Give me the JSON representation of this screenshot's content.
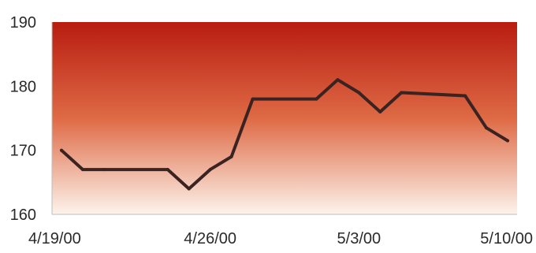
{
  "chart_data": {
    "type": "line",
    "title": "",
    "xlabel": "",
    "ylabel": "",
    "ylim": [
      160,
      190
    ],
    "yticks": [
      160,
      170,
      180,
      190
    ],
    "xticks": [
      {
        "date": "2000-04-19",
        "label": "4/19/00"
      },
      {
        "date": "2000-04-26",
        "label": "4/26/00"
      },
      {
        "date": "2000-05-03",
        "label": "5/3/00"
      },
      {
        "date": "2000-05-10",
        "label": "5/10/00"
      }
    ],
    "xlim": [
      "2000-04-19",
      "2000-05-10"
    ],
    "grid": false,
    "legend": "none",
    "colors": {
      "line": "#3a2320",
      "background_top": "#b81c10",
      "background_mid": "#de6a45",
      "background_bottom": "#fdf3ec",
      "axis": "#bdbdbd",
      "text": "#2a2a2a"
    },
    "series": [
      {
        "x": [
          "2000-04-19",
          "2000-04-20",
          "2000-04-21",
          "2000-04-24",
          "2000-04-25",
          "2000-04-26",
          "2000-04-27",
          "2000-04-28",
          "2000-05-01",
          "2000-05-02",
          "2000-05-03",
          "2000-05-04",
          "2000-05-05",
          "2000-05-08",
          "2000-05-09",
          "2000-05-10"
        ],
        "values": [
          170,
          167,
          167,
          167,
          164,
          167,
          169,
          178,
          178,
          181,
          179,
          176,
          179,
          178.5,
          173.5,
          171.5
        ]
      }
    ]
  }
}
